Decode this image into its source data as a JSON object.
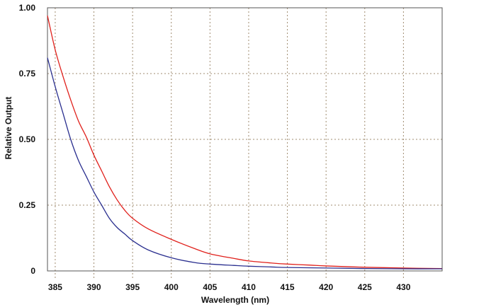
{
  "chart_data": {
    "type": "line",
    "title": "",
    "xlabel": "Wavelength (nm)",
    "ylabel": "Relative Output",
    "xlim": [
      384,
      435
    ],
    "ylim": [
      0,
      1.0
    ],
    "grid": true,
    "x_ticks": [
      385,
      390,
      395,
      400,
      405,
      410,
      415,
      420,
      425,
      430
    ],
    "x_tick_labels": [
      "385",
      "390",
      "395",
      "400",
      "405",
      "410",
      "415",
      "420",
      "425",
      "430"
    ],
    "y_ticks": [
      0,
      0.25,
      0.5,
      0.75,
      1.0
    ],
    "y_tick_labels": [
      "0",
      "0.25",
      "0.50",
      "0.75",
      "1.00"
    ],
    "series": [
      {
        "color": "#e0201b",
        "x": [
          384,
          385,
          386,
          387,
          388,
          389,
          390,
          391,
          392,
          393,
          394,
          395,
          397,
          400,
          403,
          405,
          408,
          410,
          413,
          415,
          418,
          420,
          425,
          430,
          435
        ],
        "y": [
          0.97,
          0.84,
          0.74,
          0.65,
          0.57,
          0.51,
          0.44,
          0.38,
          0.32,
          0.27,
          0.23,
          0.2,
          0.16,
          0.12,
          0.085,
          0.065,
          0.048,
          0.038,
          0.03,
          0.026,
          0.022,
          0.019,
          0.014,
          0.011,
          0.009
        ]
      },
      {
        "color": "#2a2f8f",
        "x": [
          384,
          385,
          386,
          387,
          388,
          389,
          390,
          391,
          392,
          393,
          394,
          395,
          397,
          400,
          403,
          405,
          408,
          410,
          413,
          415,
          420,
          425,
          430,
          435
        ],
        "y": [
          0.81,
          0.7,
          0.6,
          0.5,
          0.42,
          0.36,
          0.3,
          0.25,
          0.2,
          0.165,
          0.14,
          0.115,
          0.08,
          0.05,
          0.032,
          0.026,
          0.021,
          0.018,
          0.015,
          0.013,
          0.011,
          0.009,
          0.008,
          0.008
        ]
      }
    ]
  }
}
